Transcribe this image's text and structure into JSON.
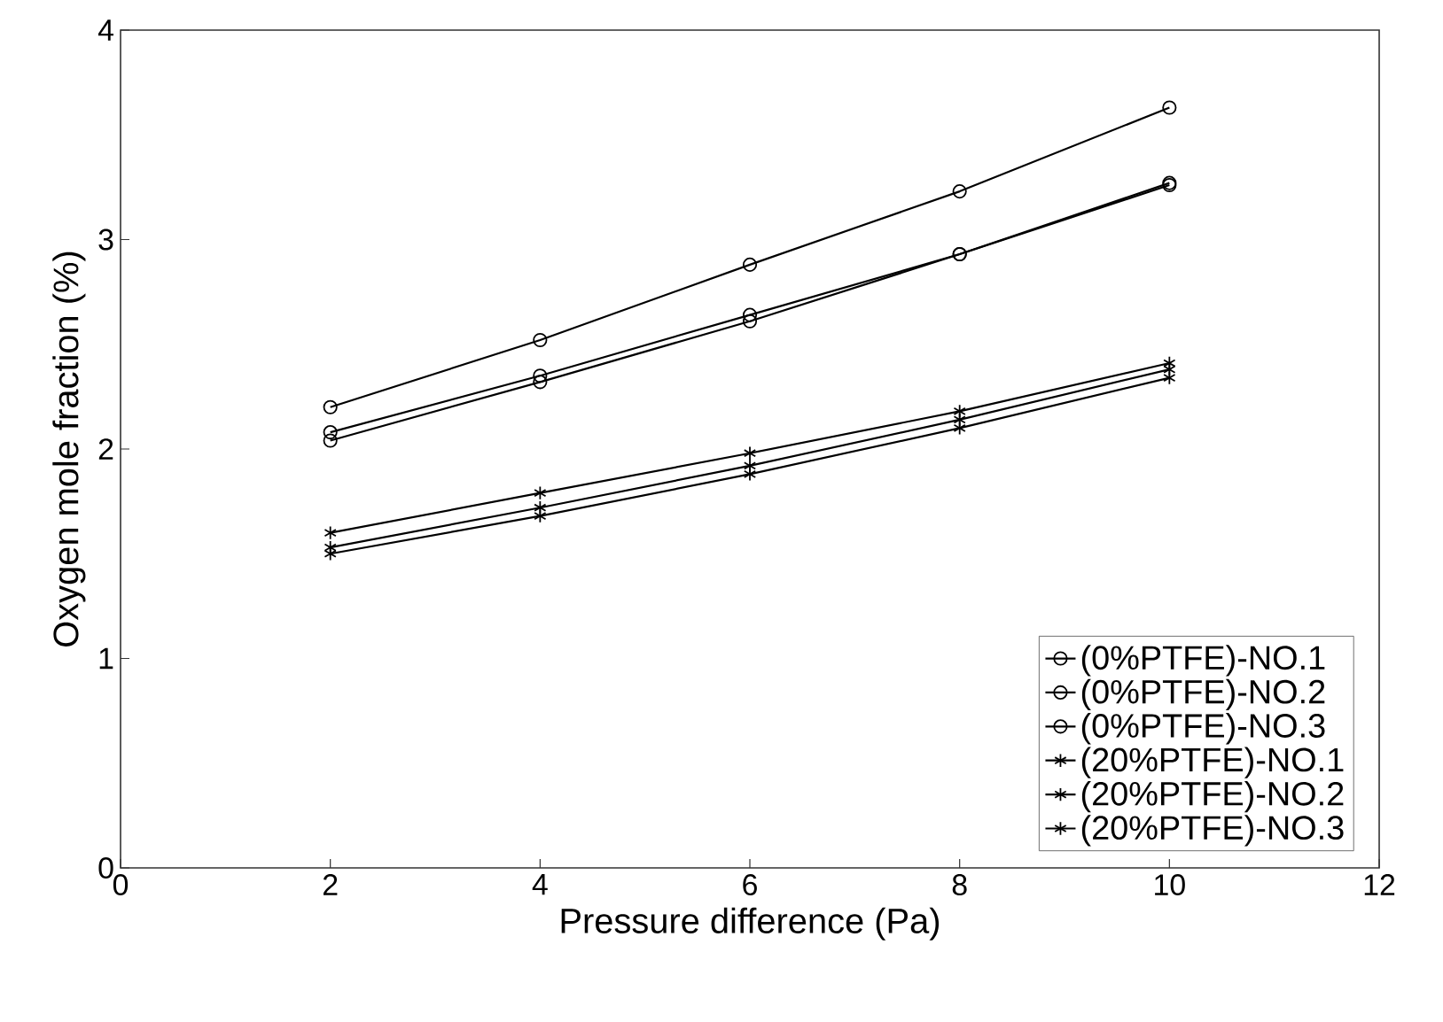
{
  "chart_data": {
    "type": "line",
    "xlabel": "Pressure difference (Pa)",
    "ylabel": "Oxygen mole fraction (%)",
    "x": [
      2,
      4,
      6,
      8,
      10
    ],
    "xlim": [
      0,
      12
    ],
    "xticks": [
      0,
      2,
      4,
      6,
      8,
      10,
      12
    ],
    "ylim": [
      0,
      4
    ],
    "yticks": [
      0,
      1,
      2,
      3,
      4
    ],
    "legend": "bottom right",
    "line_style": "solid",
    "series": [
      {
        "name": "(0%PTFE)-NO.1",
        "color": "#000000",
        "marker": "circle",
        "values": [
          2.2,
          2.52,
          2.88,
          3.23,
          3.63
        ]
      },
      {
        "name": "(0%PTFE)-NO.2",
        "color": "#000000",
        "marker": "circle",
        "values": [
          2.08,
          2.35,
          2.64,
          2.93,
          3.27
        ]
      },
      {
        "name": "(0%PTFE)-NO.3",
        "color": "#000000",
        "marker": "circle",
        "values": [
          2.04,
          2.32,
          2.61,
          2.93,
          3.26
        ]
      },
      {
        "name": "(20%PTFE)-NO.1",
        "color": "#000000",
        "marker": "cross",
        "values": [
          1.6,
          1.79,
          1.98,
          2.18,
          2.41
        ]
      },
      {
        "name": "(20%PTFE)-NO.2",
        "color": "#000000",
        "marker": "cross",
        "values": [
          1.53,
          1.72,
          1.92,
          2.14,
          2.38
        ]
      },
      {
        "name": "(20%PTFE)-NO.3",
        "color": "#000000",
        "marker": "cross",
        "values": [
          1.5,
          1.68,
          1.88,
          2.1,
          2.34
        ]
      }
    ]
  }
}
